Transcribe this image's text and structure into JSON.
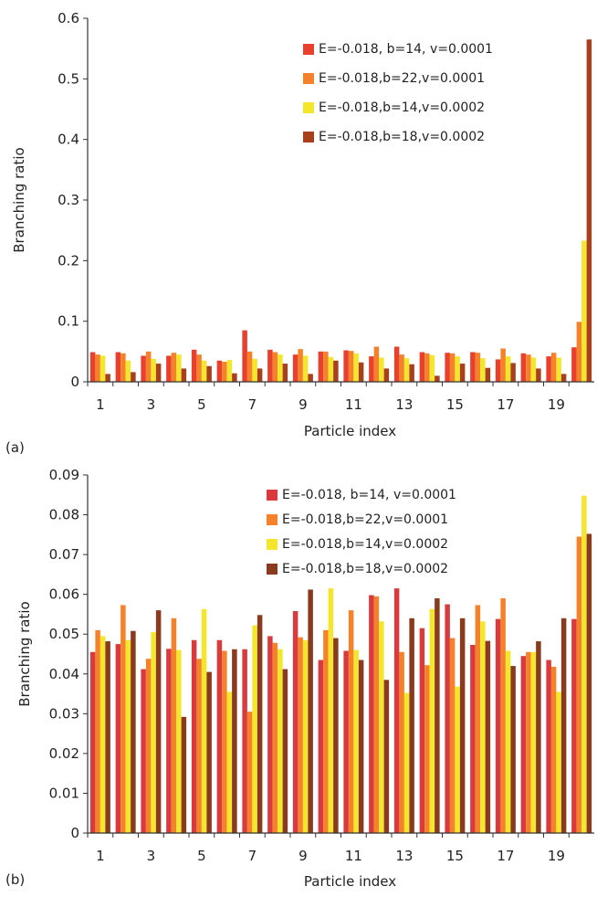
{
  "colors": {
    "series": [
      "#e8402c",
      "#f5822a",
      "#f4e62c",
      "#a8401e"
    ],
    "series_b": [
      "#d93a3e",
      "#f5822a",
      "#f4e62c",
      "#8a3a1e"
    ],
    "axis": "#333333"
  },
  "chart_data": [
    {
      "type": "bar",
      "panel_label": "(a)",
      "xlabel": "Particle index",
      "ylabel": "Branching ratio",
      "ylim": [
        0,
        0.6
      ],
      "yticks": [
        "0",
        "0.1",
        "0.2",
        "0.3",
        "0.4",
        "0.5",
        "0.6"
      ],
      "xticks": [
        "1",
        "3",
        "5",
        "7",
        "9",
        "11",
        "13",
        "15",
        "17",
        "19"
      ],
      "legend_position": "top-right",
      "categories": [
        1,
        2,
        3,
        4,
        5,
        6,
        7,
        8,
        9,
        10,
        11,
        12,
        13,
        14,
        15,
        16,
        17,
        18,
        19,
        20
      ],
      "series": [
        {
          "name": "E=-0.018, b=14, v=0.0001",
          "values": [
            0.049,
            0.049,
            0.043,
            0.043,
            0.053,
            0.035,
            0.085,
            0.053,
            0.045,
            0.05,
            0.052,
            0.042,
            0.058,
            0.049,
            0.048,
            0.049,
            0.037,
            0.047,
            0.042,
            0.057
          ]
        },
        {
          "name": "E=-0.018,b=22,v=0.0001",
          "values": [
            0.045,
            0.047,
            0.05,
            0.048,
            0.045,
            0.033,
            0.05,
            0.049,
            0.054,
            0.05,
            0.051,
            0.058,
            0.045,
            0.047,
            0.047,
            0.048,
            0.055,
            0.045,
            0.048,
            0.099
          ]
        },
        {
          "name": "E=-0.018,b=14,v=0.0002",
          "values": [
            0.043,
            0.035,
            0.038,
            0.045,
            0.035,
            0.036,
            0.038,
            0.045,
            0.043,
            0.041,
            0.047,
            0.04,
            0.039,
            0.044,
            0.042,
            0.039,
            0.042,
            0.04,
            0.04,
            0.233
          ]
        },
        {
          "name": "E=-0.018,b=18,v=0.0002",
          "values": [
            0.013,
            0.016,
            0.03,
            0.022,
            0.026,
            0.014,
            0.022,
            0.03,
            0.013,
            0.035,
            0.032,
            0.022,
            0.029,
            0.01,
            0.03,
            0.023,
            0.031,
            0.022,
            0.013,
            0.565
          ]
        }
      ]
    },
    {
      "type": "bar",
      "panel_label": "(b)",
      "xlabel": "Particle index",
      "ylabel": "Branching ratio",
      "ylim": [
        0,
        0.09
      ],
      "yticks": [
        "0",
        "0.01",
        "0.02",
        "0.03",
        "0.04",
        "0.05",
        "0.06",
        "0.07",
        "0.08",
        "0.09"
      ],
      "xticks": [
        "1",
        "3",
        "5",
        "7",
        "9",
        "11",
        "13",
        "15",
        "17",
        "19"
      ],
      "legend_position": "top-right",
      "categories": [
        1,
        2,
        3,
        4,
        5,
        6,
        7,
        8,
        9,
        10,
        11,
        12,
        13,
        14,
        15,
        16,
        17,
        18,
        19,
        20
      ],
      "series": [
        {
          "name": "E=-0.018, b=14, v=0.0001",
          "values": [
            0.0455,
            0.0475,
            0.0412,
            0.0463,
            0.0485,
            0.0485,
            0.0462,
            0.0495,
            0.0558,
            0.0435,
            0.0458,
            0.0598,
            0.0615,
            0.0515,
            0.0575,
            0.0473,
            0.0538,
            0.0445,
            0.0435,
            0.0538
          ]
        },
        {
          "name": "E=-0.018,b=22,v=0.0001",
          "values": [
            0.051,
            0.0573,
            0.0438,
            0.054,
            0.0438,
            0.0458,
            0.0305,
            0.0478,
            0.0492,
            0.051,
            0.056,
            0.0595,
            0.0455,
            0.0422,
            0.049,
            0.0573,
            0.059,
            0.0455,
            0.0418,
            0.0745
          ]
        },
        {
          "name": "E=-0.018,b=14,v=0.0002",
          "values": [
            0.0495,
            0.0485,
            0.0505,
            0.046,
            0.0563,
            0.0355,
            0.0522,
            0.0462,
            0.0485,
            0.0615,
            0.046,
            0.0532,
            0.0352,
            0.0563,
            0.0368,
            0.0532,
            0.0458,
            0.0455,
            0.0355,
            0.0848
          ]
        },
        {
          "name": "E=-0.018,b=18,v=0.0002",
          "values": [
            0.0482,
            0.0508,
            0.056,
            0.0292,
            0.0405,
            0.0462,
            0.0548,
            0.0412,
            0.0612,
            0.049,
            0.0435,
            0.0385,
            0.054,
            0.059,
            0.054,
            0.0483,
            0.042,
            0.0482,
            0.054,
            0.0752
          ]
        }
      ]
    }
  ]
}
